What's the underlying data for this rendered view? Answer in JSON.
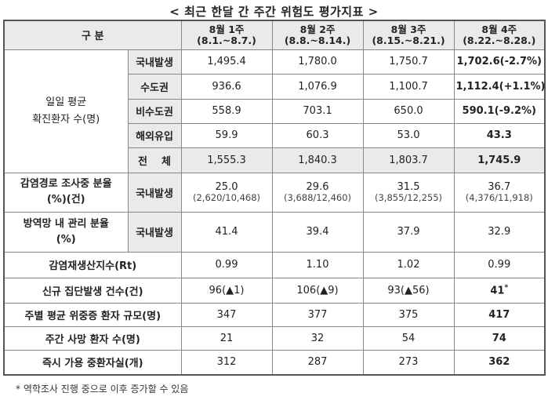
{
  "title": "< 최근 한달 간 주간 위험도 평가지표 >",
  "header": {
    "category": "구 분",
    "weeks": [
      {
        "label": "8월 1주",
        "range": "(8.1.~8.7.)"
      },
      {
        "label": "8월 2주",
        "range": "(8.8.~8.14.)"
      },
      {
        "label": "8월 3주",
        "range": "(8.15.~8.21.)"
      },
      {
        "label": "8월 4주",
        "range": "(8.22.~8.28.)"
      }
    ]
  },
  "daily_avg": {
    "label_line1": "일일 평균",
    "label_line2": "확진환자 수(명)",
    "rows": [
      {
        "sub": "국내발생",
        "values": [
          "1,495.4",
          "1,780.0",
          "1,750.7"
        ],
        "last": "1,702.6",
        "last_change": "(-2.7%)"
      },
      {
        "sub": "수도권",
        "values": [
          "936.6",
          "1,076.9",
          "1,100.7"
        ],
        "last": "1,112.4",
        "last_change": "(+1.1%)"
      },
      {
        "sub": "비수도권",
        "values": [
          "558.9",
          "703.1",
          "650.0"
        ],
        "last": "590.1",
        "last_change": "(-9.2%)"
      },
      {
        "sub": "해외유입",
        "values": [
          "59.9",
          "60.3",
          "53.0"
        ],
        "last": "43.3",
        "last_change": ""
      },
      {
        "sub": "전    체",
        "values": [
          "1,555.3",
          "1,840.3",
          "1,803.7"
        ],
        "last": "1,745.9",
        "last_change": ""
      }
    ]
  },
  "investigation": {
    "label_line1": "감염경로 조사중 분율",
    "label_line2": "(%)(건)",
    "sub": "국내발생",
    "values": [
      {
        "pct": "25.0",
        "detail": "(2,620/10,468)"
      },
      {
        "pct": "29.6",
        "detail": "(3,688/12,460)"
      },
      {
        "pct": "31.5",
        "detail": "(3,855/12,255)"
      },
      {
        "pct": "36.7",
        "detail": "(4,376/11,918)"
      }
    ]
  },
  "managed": {
    "label_line1": "방역망 내 관리 분율",
    "label_line2": "(%)",
    "sub": "국내발생",
    "values": [
      "41.4",
      "39.4",
      "37.9",
      "32.9"
    ]
  },
  "simple_rows": [
    {
      "label": "감염재생산지수(Rt)",
      "values": [
        "0.99",
        "1.10",
        "1.02"
      ],
      "last": "0.99",
      "last_bold": false,
      "last_sup": ""
    },
    {
      "label": "신규 집단발생 건수(건)",
      "values": [
        "96(▲1)",
        "106(▲9)",
        "93(▲56)"
      ],
      "last": "41",
      "last_bold": true,
      "last_sup": "*"
    },
    {
      "label": "주별 평균 위중증 환자 규모(명)",
      "values": [
        "347",
        "377",
        "375"
      ],
      "last": "417",
      "last_bold": true,
      "last_sup": ""
    },
    {
      "label": "주간 사망 환자 수(명)",
      "values": [
        "21",
        "32",
        "54"
      ],
      "last": "74",
      "last_bold": true,
      "last_sup": ""
    },
    {
      "label": "즉시 가용 중환자실(개)",
      "values": [
        "312",
        "287",
        "273"
      ],
      "last": "362",
      "last_bold": true,
      "last_sup": ""
    }
  ],
  "footnote": "* 역학조사 진행 중으로 이후 증가할 수 있음"
}
